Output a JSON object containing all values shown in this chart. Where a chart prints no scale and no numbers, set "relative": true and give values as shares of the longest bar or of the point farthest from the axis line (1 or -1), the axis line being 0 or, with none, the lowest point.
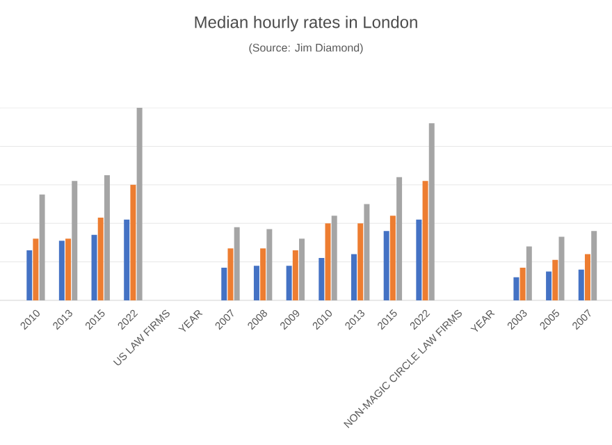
{
  "chart_data": {
    "type": "bar",
    "title": "Median hourly rates in London",
    "subtitle": "(Source: Jim Diamond)",
    "categories": [
      "2010",
      "2013",
      "2015",
      "2022",
      "US LAW FIRMS",
      "YEAR",
      "2007",
      "2008",
      "2009",
      "2010",
      "2013",
      "2015",
      "2022",
      "NON-MAGIC CIRCLE LAW FIRMS",
      "YEAR",
      "2003",
      "2005",
      "2007"
    ],
    "series": [
      {
        "color": "#4472c4",
        "values": [
          0.26,
          0.31,
          0.34,
          0.42,
          null,
          null,
          0.17,
          0.18,
          0.18,
          0.22,
          0.24,
          0.36,
          0.42,
          null,
          null,
          0.12,
          0.15,
          0.16
        ]
      },
      {
        "color": "#ed7d31",
        "values": [
          0.32,
          0.32,
          0.43,
          0.6,
          null,
          null,
          0.27,
          0.27,
          0.26,
          0.4,
          0.4,
          0.44,
          0.62,
          null,
          null,
          0.17,
          0.21,
          0.24
        ]
      },
      {
        "color": "#a5a5a5",
        "values": [
          0.55,
          0.62,
          0.65,
          1,
          null,
          null,
          0.38,
          0.37,
          0.32,
          0.44,
          0.5,
          0.64,
          0.92,
          null,
          null,
          0.28,
          0.33,
          0.36
        ]
      }
    ],
    "relative": true,
    "grid": "y"
  }
}
